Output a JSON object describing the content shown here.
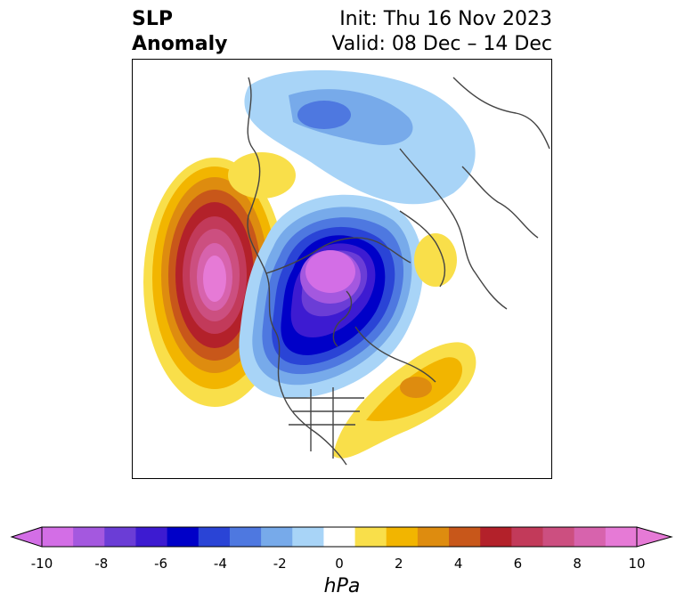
{
  "title": {
    "left_line1": "SLP",
    "left_line2": "Anomaly",
    "right_line1": "Init: Thu 16 Nov 2023",
    "right_line2": "Valid: 08 Dec – 14 Dec"
  },
  "colorbar": {
    "label": "hPa",
    "ticks": [
      "-10",
      "-8",
      "-6",
      "-4",
      "-2",
      "0",
      "2",
      "4",
      "6",
      "8",
      "10"
    ],
    "levels": [
      -10,
      -9,
      -8,
      -7,
      -6,
      -5,
      -4,
      -3,
      -2,
      -1,
      1,
      2,
      3,
      4,
      5,
      6,
      7,
      8,
      9,
      10
    ],
    "colors": [
      "#d36ee6",
      "#a458df",
      "#6b3dd6",
      "#3d1bd1",
      "#0000c8",
      "#2a44d6",
      "#4e78e0",
      "#77aaea",
      "#a8d4f7",
      "#ffffff",
      "#f9df4a",
      "#f2b500",
      "#de8c0f",
      "#c8571a",
      "#b3212a",
      "#c23a5a",
      "#cc4f80",
      "#d763ad",
      "#e67ad6"
    ]
  },
  "map": {
    "projection": "north-polar-stereographic",
    "features": [
      {
        "name": "positive-anomaly-north-pacific",
        "sign": "positive",
        "peak_hpa": 10
      },
      {
        "name": "negative-anomaly-arctic-canada",
        "sign": "negative",
        "peak_hpa": -10
      },
      {
        "name": "negative-anomaly-siberia",
        "sign": "negative",
        "peak_hpa": -4
      },
      {
        "name": "positive-anomaly-western-atlantic",
        "sign": "positive",
        "peak_hpa": 5
      },
      {
        "name": "positive-anomaly-alaska",
        "sign": "positive",
        "peak_hpa": 2
      },
      {
        "name": "positive-anomaly-scandinavia",
        "sign": "positive",
        "peak_hpa": 2
      }
    ]
  }
}
